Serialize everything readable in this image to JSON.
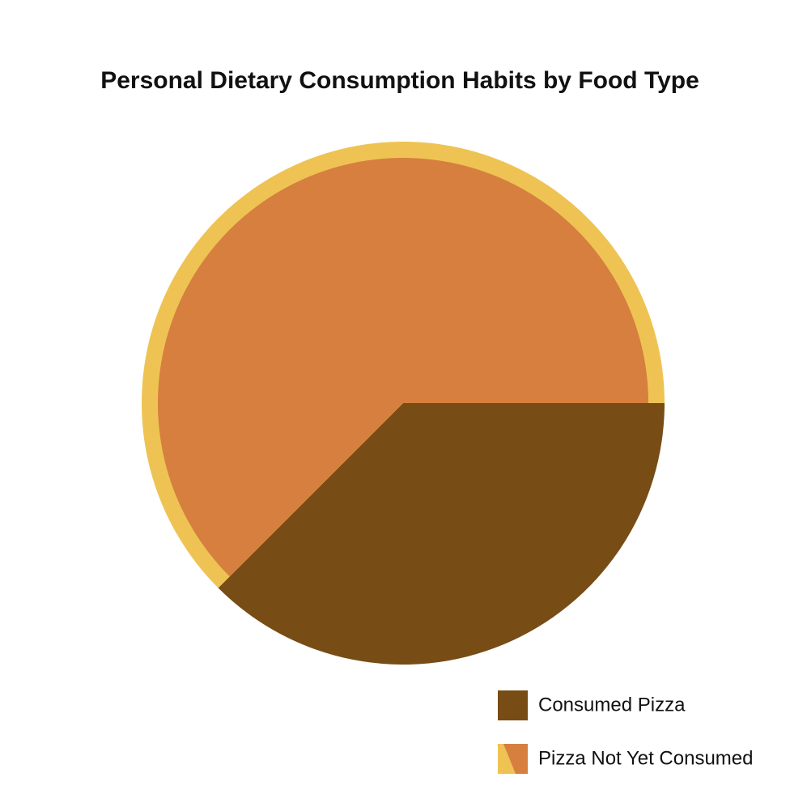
{
  "chart_data": {
    "type": "pie",
    "title": "Personal Dietary Consumption Habits by Food Type",
    "categories": [
      "Consumed Pizza",
      "Pizza Not Yet Consumed"
    ],
    "values": [
      37.5,
      62.5
    ],
    "colors": [
      "#774c15",
      "#d67f3f"
    ],
    "legend": "bottom-right"
  }
}
